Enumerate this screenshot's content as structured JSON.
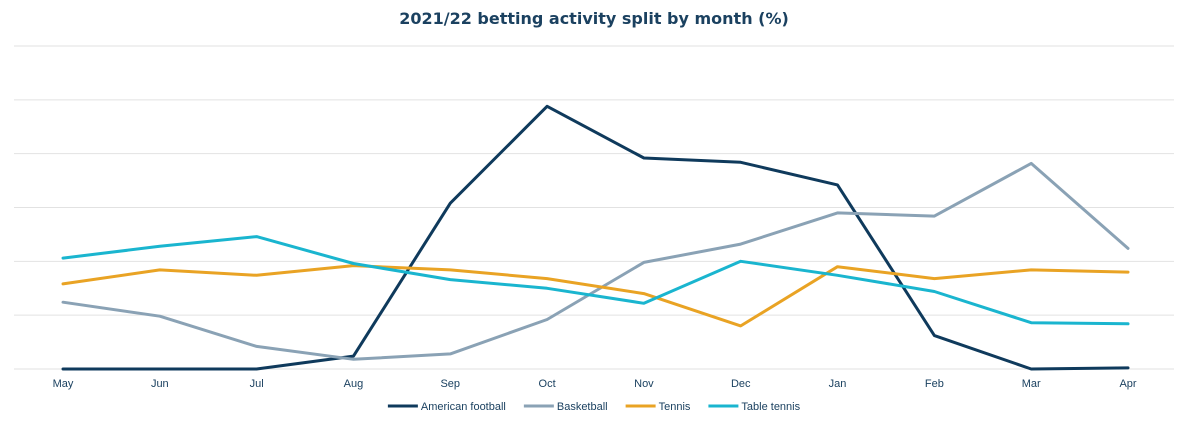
{
  "chart_data": {
    "type": "line",
    "title": "2021/22 betting activity split by month (%)",
    "xlabel": "",
    "ylabel": "",
    "categories": [
      "May",
      "Jun",
      "Jul",
      "Aug",
      "Sep",
      "Oct",
      "Nov",
      "Dec",
      "Jan",
      "Feb",
      "Mar",
      "Apr"
    ],
    "ylim": [
      0,
      30
    ],
    "grid": true,
    "legend_position": "bottom",
    "series": [
      {
        "name": "American football",
        "color": "#0f3a5c",
        "values": [
          0,
          0,
          0,
          1.2,
          15.4,
          24.4,
          19.6,
          19.2,
          17.1,
          3.1,
          0,
          0.1
        ]
      },
      {
        "name": "Basketball",
        "color": "#8aa2b5",
        "values": [
          6.2,
          4.9,
          2.1,
          0.9,
          1.4,
          4.6,
          9.9,
          11.6,
          14.5,
          14.2,
          19.1,
          11.2
        ]
      },
      {
        "name": "Tennis",
        "color": "#e9a324",
        "values": [
          7.9,
          9.2,
          8.7,
          9.6,
          9.2,
          8.4,
          7.0,
          4.0,
          9.5,
          8.4,
          9.2,
          9.0
        ]
      },
      {
        "name": "Table tennis",
        "color": "#1ab5cf",
        "values": [
          10.3,
          11.4,
          12.3,
          9.8,
          8.3,
          7.5,
          6.1,
          10.0,
          8.7,
          7.2,
          4.3,
          4.2
        ]
      }
    ]
  }
}
